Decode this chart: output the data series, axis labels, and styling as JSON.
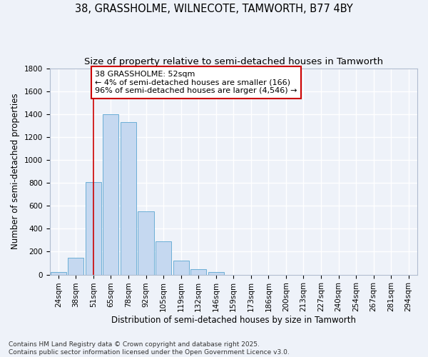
{
  "title1": "38, GRASSHOLME, WILNECOTE, TAMWORTH, B77 4BY",
  "title2": "Size of property relative to semi-detached houses in Tamworth",
  "xlabel": "Distribution of semi-detached houses by size in Tamworth",
  "ylabel": "Number of semi-detached properties",
  "categories": [
    "24sqm",
    "38sqm",
    "51sqm",
    "65sqm",
    "78sqm",
    "92sqm",
    "105sqm",
    "119sqm",
    "132sqm",
    "146sqm",
    "159sqm",
    "173sqm",
    "186sqm",
    "200sqm",
    "213sqm",
    "227sqm",
    "240sqm",
    "254sqm",
    "267sqm",
    "281sqm",
    "294sqm"
  ],
  "values": [
    20,
    145,
    810,
    1400,
    1330,
    550,
    290,
    120,
    50,
    20,
    0,
    0,
    0,
    0,
    0,
    0,
    0,
    0,
    0,
    0,
    0
  ],
  "bar_color": "#c5d8f0",
  "bar_edge_color": "#6baed6",
  "vline_x_index": 2,
  "vline_color": "#cc0000",
  "annotation_text": "38 GRASSHOLME: 52sqm\n← 4% of semi-detached houses are smaller (166)\n96% of semi-detached houses are larger (4,546) →",
  "annotation_box_color": "#ffffff",
  "annotation_box_edge": "#cc0000",
  "ylim": [
    0,
    1800
  ],
  "yticks": [
    0,
    200,
    400,
    600,
    800,
    1000,
    1200,
    1400,
    1600,
    1800
  ],
  "footnote": "Contains HM Land Registry data © Crown copyright and database right 2025.\nContains public sector information licensed under the Open Government Licence v3.0.",
  "bg_color": "#eef2f9",
  "grid_color": "#ffffff",
  "title_fontsize": 10.5,
  "subtitle_fontsize": 9.5,
  "axis_label_fontsize": 8.5,
  "tick_fontsize": 7.5,
  "annotation_fontsize": 8,
  "footnote_fontsize": 6.5
}
